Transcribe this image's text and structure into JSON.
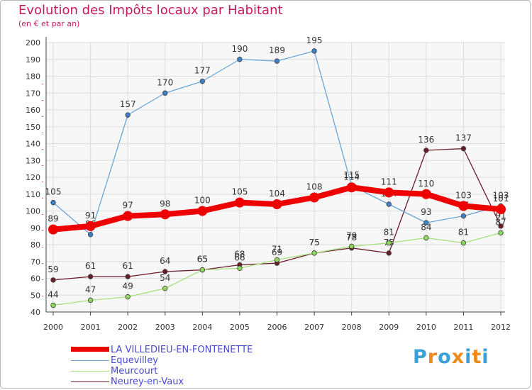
{
  "title": "Evolution des Impôts locaux par Habitant",
  "subtitle": "(en € et par an)",
  "logo_text": "Proxiti",
  "chart_data": {
    "type": "line",
    "x": [
      2000,
      2001,
      2002,
      2003,
      2004,
      2005,
      2006,
      2007,
      2008,
      2009,
      2010,
      2011,
      2012
    ],
    "ylim": [
      40,
      200
    ],
    "yticks": [
      40,
      50,
      60,
      70,
      80,
      90,
      100,
      110,
      120,
      130,
      140,
      150,
      160,
      170,
      180,
      190,
      200
    ],
    "grid": true,
    "legend_position": "bottom-left",
    "series": [
      {
        "name": "Neurey-en-Vaux",
        "color": "#6b1a2a",
        "marker": "#6b1a2a",
        "values": [
          59,
          61,
          61,
          64,
          65,
          68,
          69,
          75,
          78,
          75,
          136,
          137,
          91
        ],
        "labels": [
          "59",
          "61",
          "61",
          "64",
          "65",
          "68",
          "69",
          "75",
          "78",
          "75",
          "136",
          "137",
          "91"
        ]
      },
      {
        "name": "Meurcourt",
        "color": "#a6e07a",
        "marker": "#8ed85e",
        "values": [
          44,
          47,
          49,
          54,
          65,
          66,
          71,
          75,
          79,
          81,
          84,
          81,
          87
        ],
        "labels": [
          "44",
          "47",
          "49",
          "54",
          "65",
          "66",
          "71",
          "75",
          "79",
          "81",
          "84",
          "81",
          "87"
        ]
      },
      {
        "name": "Equevilley",
        "color": "#6aa6d8",
        "marker": "#3b80c8",
        "values": [
          105,
          86,
          157,
          170,
          177,
          190,
          189,
          195,
          115,
          104,
          93,
          97,
          103
        ],
        "labels": [
          "105",
          "86",
          "157",
          "170",
          "177",
          "190",
          "189",
          "195",
          "115",
          "104",
          "93",
          "97",
          "103"
        ]
      },
      {
        "name": "LA VILLEDIEU-EN-FONTENETTE",
        "color": "#ee0000",
        "marker": "#ee0000",
        "values": [
          89,
          91,
          97,
          98,
          100,
          105,
          104,
          108,
          114,
          111,
          110,
          103,
          101
        ],
        "labels": [
          "89",
          "91",
          "97",
          "98",
          "100",
          "105",
          "104",
          "108",
          "114",
          "111",
          "110",
          "103",
          "101"
        ]
      }
    ]
  },
  "legend": [
    {
      "label": "LA VILLEDIEU-EN-FONTENETTE",
      "color": "#ee0000",
      "text_color": "#4a4ad0"
    },
    {
      "label": "Equevilley",
      "color": "#6aa6d8",
      "text_color": "#4a4ad0"
    },
    {
      "label": "Meurcourt",
      "color": "#a6e07a",
      "text_color": "#4a4ad0"
    },
    {
      "label": "Neurey-en-Vaux",
      "color": "#6b1a2a",
      "text_color": "#4a4ad0"
    }
  ]
}
